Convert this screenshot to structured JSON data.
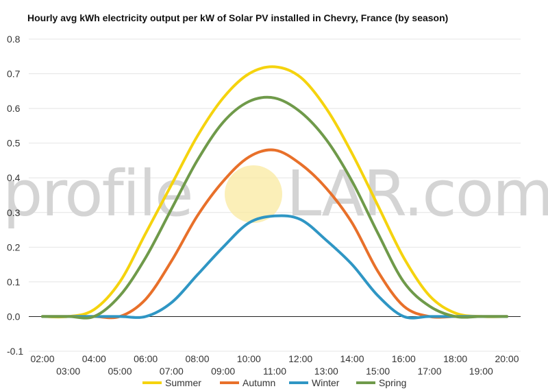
{
  "chart_data": {
    "type": "line",
    "title": "Hourly avg kWh electricity output per kW of Solar PV installed in Chevry, France (by season)",
    "xlabel": "",
    "ylabel": "",
    "ylim": [
      -0.1,
      0.8
    ],
    "yticks": [
      "0.8",
      "0.7",
      "0.6",
      "0.5",
      "0.4",
      "0.3",
      "0.2",
      "0.1",
      "0.0",
      "-0.1"
    ],
    "x_hours": [
      2,
      3,
      4,
      5,
      6,
      7,
      8,
      9,
      10,
      11,
      12,
      13,
      14,
      15,
      16,
      17,
      18,
      19,
      20
    ],
    "xtick_labels": [
      "02:00",
      "03:00",
      "04:00",
      "05:00",
      "06:00",
      "07:00",
      "08:00",
      "09:00",
      "10:00",
      "11:00",
      "12:00",
      "13:00",
      "14:00",
      "15:00",
      "16:00",
      "17:00",
      "18:00",
      "19:00",
      "20:00"
    ],
    "grid": true,
    "legend_position": "bottom",
    "series": [
      {
        "name": "Summer",
        "color": "#f5d30e",
        "values": [
          0.0,
          0.0,
          0.02,
          0.1,
          0.24,
          0.38,
          0.52,
          0.63,
          0.7,
          0.72,
          0.69,
          0.6,
          0.47,
          0.32,
          0.17,
          0.06,
          0.01,
          0.0,
          0.0
        ]
      },
      {
        "name": "Autumn",
        "color": "#e8702a",
        "values": [
          0.0,
          0.0,
          0.0,
          0.0,
          0.05,
          0.16,
          0.29,
          0.39,
          0.46,
          0.48,
          0.44,
          0.37,
          0.27,
          0.13,
          0.03,
          0.0,
          0.0,
          0.0,
          0.0
        ]
      },
      {
        "name": "Winter",
        "color": "#2f96c4",
        "values": [
          0.0,
          0.0,
          0.0,
          0.0,
          0.0,
          0.04,
          0.12,
          0.2,
          0.27,
          0.29,
          0.28,
          0.22,
          0.15,
          0.06,
          0.0,
          0.0,
          0.0,
          0.0,
          0.0
        ]
      },
      {
        "name": "Spring",
        "color": "#6f9a4a",
        "values": [
          0.0,
          0.0,
          0.0,
          0.06,
          0.17,
          0.31,
          0.45,
          0.56,
          0.62,
          0.63,
          0.59,
          0.51,
          0.39,
          0.24,
          0.1,
          0.03,
          0.0,
          0.0,
          0.0
        ]
      }
    ]
  },
  "watermark": {
    "left_text": "profile",
    "right_text": "LAR.com"
  }
}
